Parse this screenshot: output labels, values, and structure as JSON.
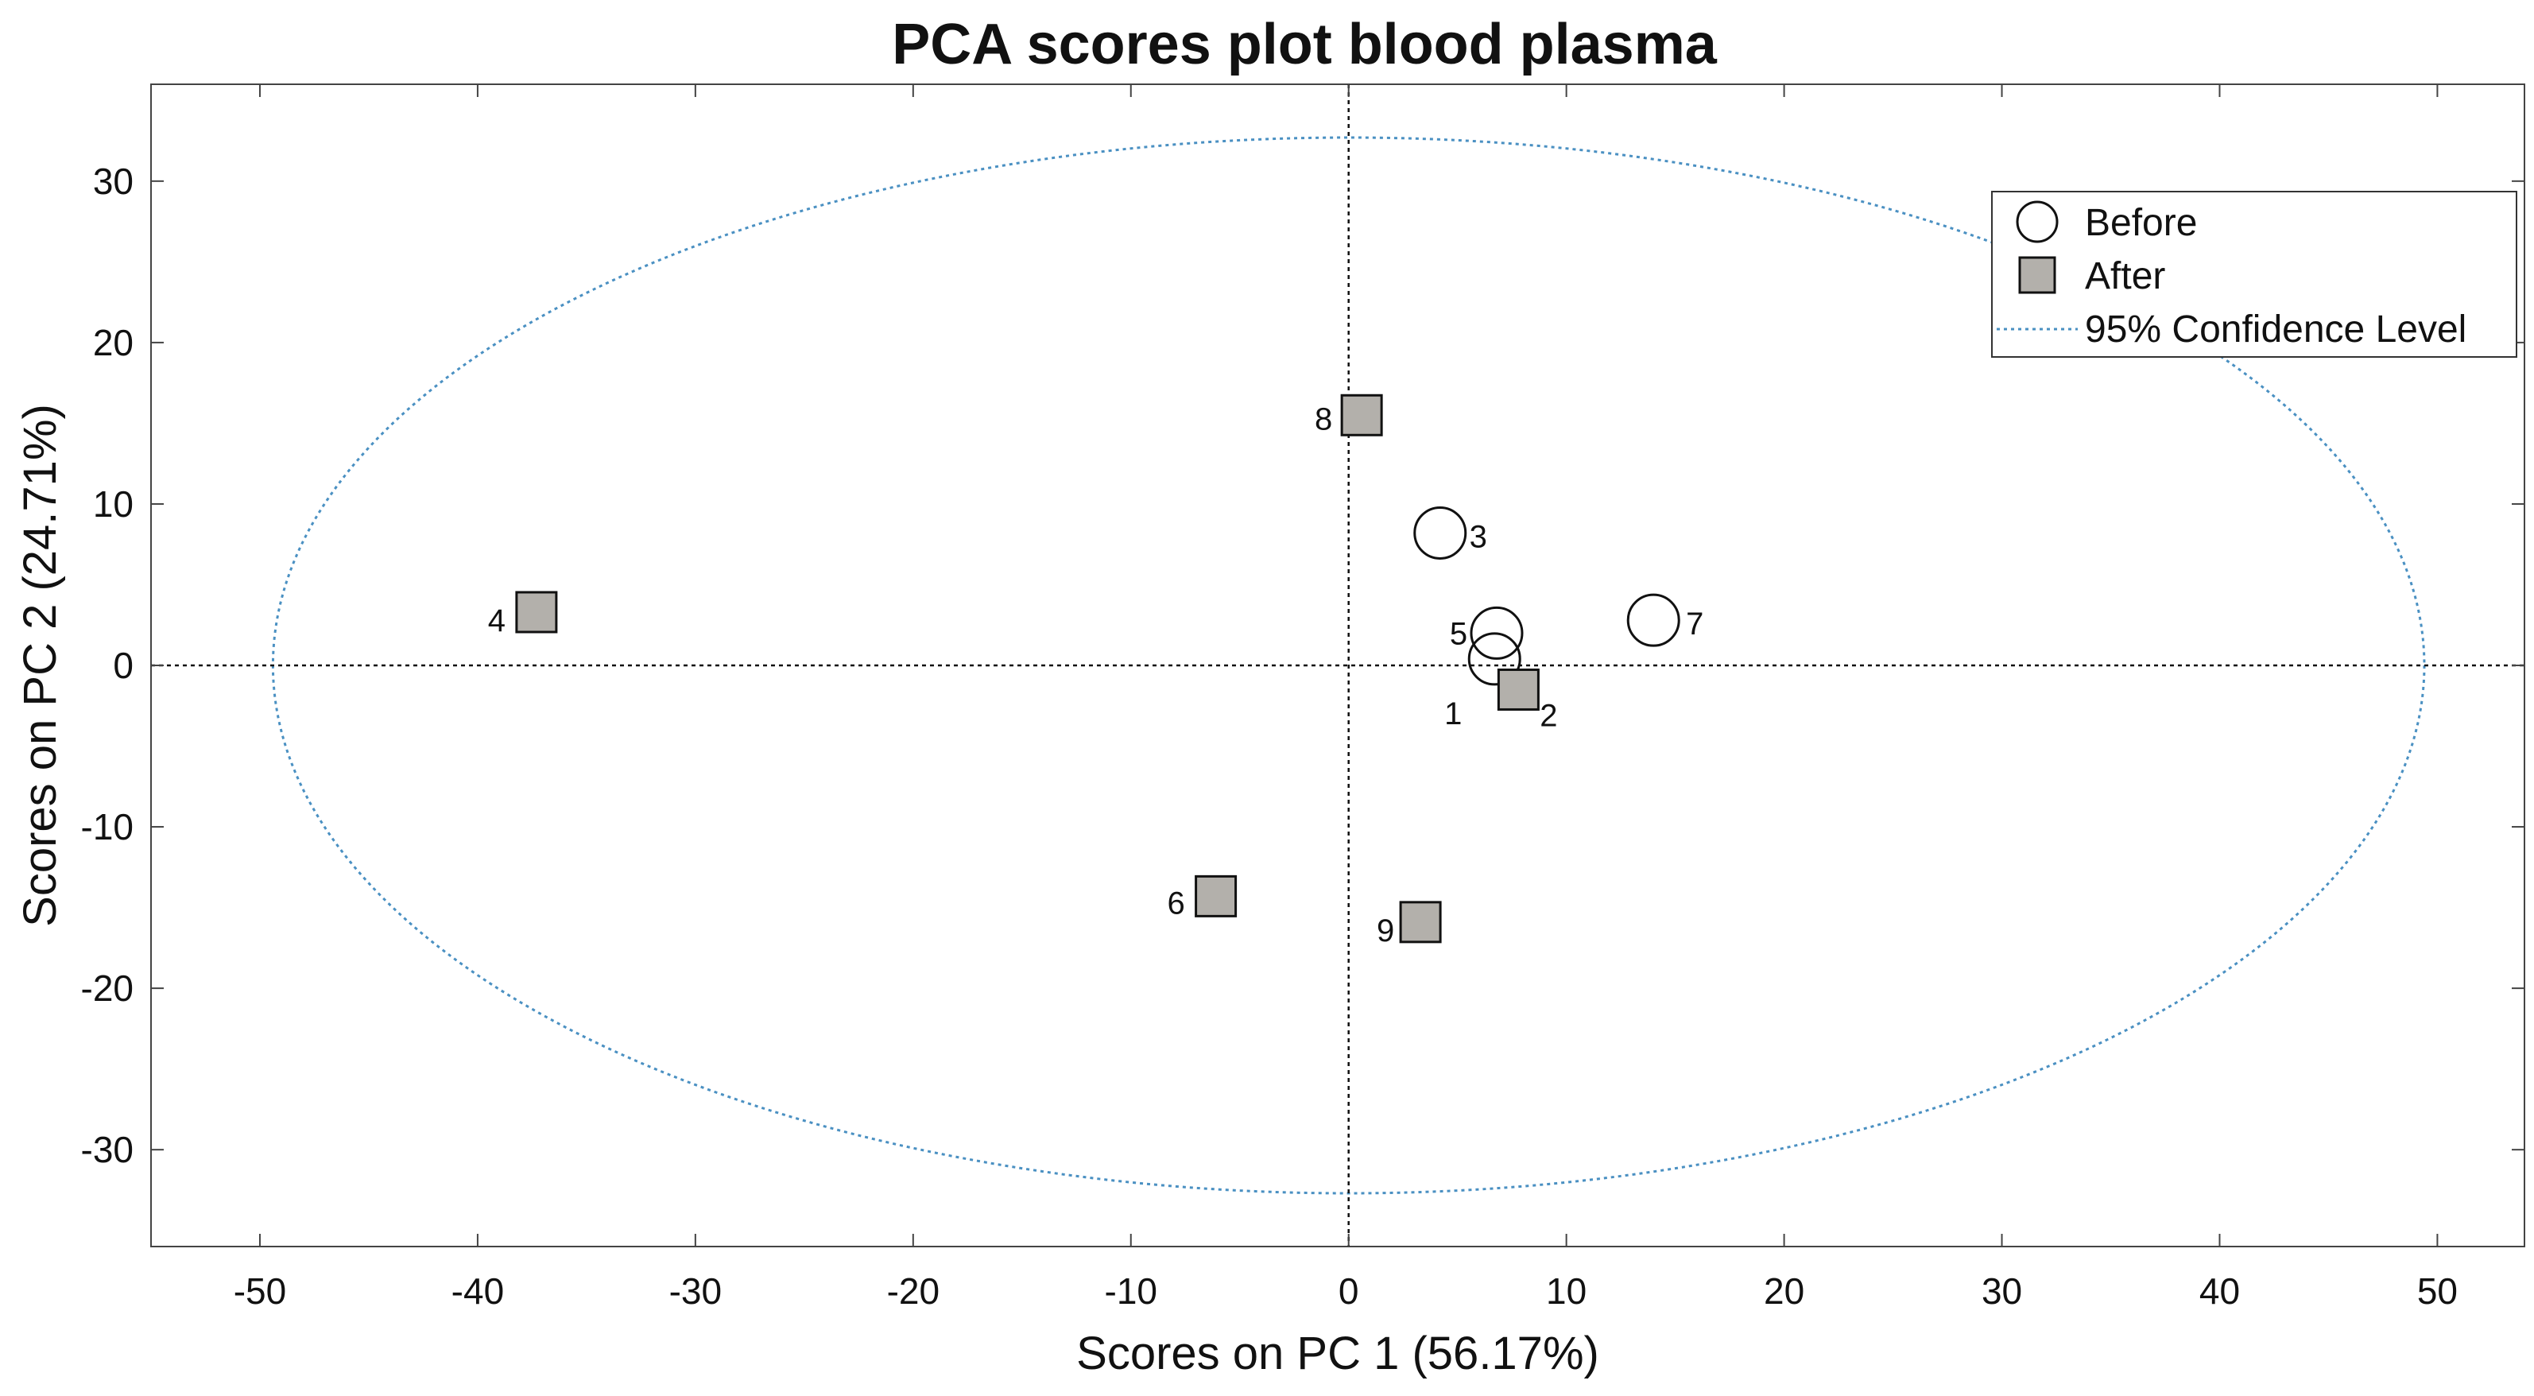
{
  "chart_data": {
    "type": "scatter",
    "title": "PCA scores plot blood plasma",
    "xlabel": "Scores on PC 1 (56.17%)",
    "ylabel": "Scores on PC 2 (24.71%)",
    "xlim": [
      -55,
      54
    ],
    "ylim": [
      -36,
      36
    ],
    "xticks": [
      -50,
      -40,
      -30,
      -20,
      -10,
      0,
      10,
      20,
      30,
      40,
      50
    ],
    "yticks": [
      -30,
      -20,
      -10,
      0,
      10,
      20,
      30
    ],
    "reference_lines": {
      "x": 0,
      "y": 0,
      "style": "dotted"
    },
    "series": [
      {
        "name": "Before",
        "marker": "circle",
        "color": "#ffffff",
        "points": [
          {
            "label": "1",
            "x": 6.7,
            "y": 0.4
          },
          {
            "label": "3",
            "x": 4.2,
            "y": 8.2
          },
          {
            "label": "5",
            "x": 6.8,
            "y": 2.0
          },
          {
            "label": "7",
            "x": 14.0,
            "y": 2.8
          }
        ]
      },
      {
        "name": "After",
        "marker": "square",
        "color": "#b3b0ab",
        "points": [
          {
            "label": "2",
            "x": 7.8,
            "y": -1.5
          },
          {
            "label": "4",
            "x": -37.3,
            "y": 3.3
          },
          {
            "label": "6",
            "x": -6.1,
            "y": -14.3
          },
          {
            "label": "8",
            "x": 0.6,
            "y": 15.5
          },
          {
            "label": "9",
            "x": 3.3,
            "y": -15.9
          }
        ]
      }
    ],
    "confidence_ellipse": {
      "name": "95% Confidence Level",
      "center": [
        0,
        0
      ],
      "rx": 49.4,
      "ry": 32.7,
      "color": "#4a90c2",
      "style": "dotted"
    },
    "legend": {
      "placement": "top-right",
      "entries": [
        "Before",
        "After",
        "95% Confidence Level"
      ]
    }
  }
}
